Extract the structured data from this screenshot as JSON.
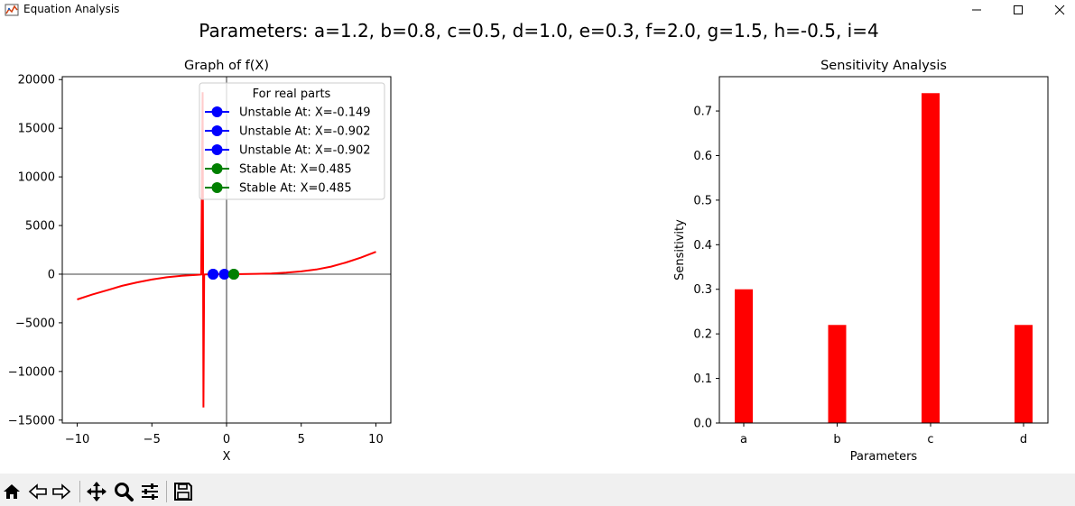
{
  "window": {
    "title": "Equation Analysis",
    "minimize_icon": "minimize-icon",
    "maximize_icon": "maximize-icon",
    "close_icon": "close-icon"
  },
  "figure": {
    "suptitle": "Parameters: a=1.2, b=0.8, c=0.5, d=1.0, e=0.3, f=2.0, g=1.5, h=-0.5, i=4"
  },
  "left_plot": {
    "title": "Graph of f(X)",
    "xlabel": "X",
    "x_ticks": [
      "−10",
      "−5",
      "0",
      "5",
      "10"
    ],
    "y_ticks": [
      "−15000",
      "−10000",
      "−5000",
      "0",
      "5000",
      "10000",
      "15000",
      "20000"
    ],
    "legend_title": "For real parts",
    "legend": [
      {
        "label": "Unstable At: X=-0.149",
        "color": "#0000ff"
      },
      {
        "label": "Unstable At: X=-0.902",
        "color": "#0000ff"
      },
      {
        "label": "Unstable At: X=-0.902",
        "color": "#0000ff"
      },
      {
        "label": "Stable At: X=0.485",
        "color": "#008000"
      },
      {
        "label": "Stable At: X=0.485",
        "color": "#008000"
      }
    ]
  },
  "chart_data": [
    {
      "type": "line",
      "title": "Graph of f(X)",
      "xlabel": "X",
      "ylabel": "",
      "xlim": [
        -11,
        11
      ],
      "ylim": [
        -15300,
        20300
      ],
      "series": [
        {
          "color": "#ff0000",
          "x": [
            -10,
            -9,
            -8,
            -7,
            -6,
            -5,
            -4,
            -3,
            -2.5,
            -2,
            -1.8,
            -1.7,
            -1.6,
            -1.55,
            -1.5,
            -1.4,
            -1.2,
            -1.0,
            -0.5,
            0,
            1,
            2,
            3,
            4,
            5,
            6,
            7,
            8,
            9,
            10
          ],
          "y": [
            -2600,
            -2100,
            -1650,
            -1200,
            -850,
            -550,
            -320,
            -170,
            -110,
            -70,
            -50,
            -30,
            18700,
            -13700,
            -30,
            -20,
            -15,
            -10,
            -5,
            0,
            10,
            30,
            70,
            150,
            280,
            480,
            780,
            1200,
            1700,
            2300
          ]
        }
      ],
      "points": [
        {
          "label": "Unstable At: X=-0.149",
          "x": -0.149,
          "y": 0,
          "color": "#0000ff"
        },
        {
          "label": "Unstable At: X=-0.902",
          "x": -0.902,
          "y": 0,
          "color": "#0000ff"
        },
        {
          "label": "Unstable At: X=-0.902",
          "x": -0.902,
          "y": 0,
          "color": "#0000ff"
        },
        {
          "label": "Stable At: X=0.485",
          "x": 0.485,
          "y": 0,
          "color": "#008000"
        },
        {
          "label": "Stable At: X=0.485",
          "x": 0.485,
          "y": 0,
          "color": "#008000"
        }
      ],
      "reference_lines": {
        "x": 0,
        "y": 0
      },
      "legend_placement": "upper-right",
      "grid": false
    },
    {
      "type": "bar",
      "title": "Sensitivity Analysis",
      "xlabel": "Parameters",
      "ylabel": "Sensitivity",
      "categories": [
        "a",
        "b",
        "c",
        "d"
      ],
      "values": [
        0.3,
        0.22,
        0.74,
        0.22
      ],
      "y_ticks": [
        "0.0",
        "0.1",
        "0.2",
        "0.3",
        "0.4",
        "0.5",
        "0.6",
        "0.7"
      ],
      "ylim": [
        0,
        0.777
      ],
      "color": "#ff0000",
      "grid": false
    }
  ],
  "toolbar": {
    "buttons": [
      {
        "name": "home-icon"
      },
      {
        "name": "back-icon"
      },
      {
        "name": "forward-icon"
      },
      {
        "name": "pan-icon"
      },
      {
        "name": "zoom-icon"
      },
      {
        "name": "configure-subplots-icon"
      },
      {
        "name": "save-icon"
      }
    ]
  }
}
